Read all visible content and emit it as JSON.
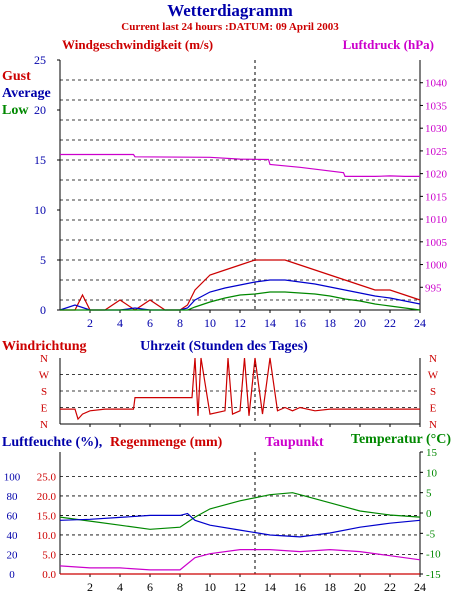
{
  "header": {
    "title": "Wetterdiagramm",
    "subtitle": "Current last 24 hours :DATUM: 09 April 2003"
  },
  "wind_panel": {
    "left_title": "Windgeschwindigkeit (m/s)",
    "right_title": "Luftdruck (hPa)",
    "legend_gust": "Gust",
    "legend_average": "Average",
    "legend_low": "Low",
    "x_title": "Uhrzeit (Stunden des Tages)",
    "colors": {
      "gust": "#cc0000",
      "average": "#0000cc",
      "low": "#008800",
      "pressure": "#cc00cc",
      "left_axis": "#0000aa"
    }
  },
  "direction_panel": {
    "title": "Windrichtung",
    "color": "#cc0000"
  },
  "humidity_panel": {
    "left_title_a": "Luftfeuchte (%),",
    "left_title_b": "Regenmenge (mm)",
    "mid_title": "Taupunkt",
    "right_title": "Temperatur (°C)",
    "colors": {
      "humidity": "#0000cc",
      "rain": "#cc0000",
      "dewpoint": "#cc00cc",
      "temperature": "#008800"
    }
  },
  "chart_data": [
    {
      "type": "line",
      "title": "Windgeschwindigkeit (m/s)",
      "xlabel": "Uhrzeit (Stunden des Tages)",
      "ylabel": "Windgeschwindigkeit (m/s)",
      "xlim": [
        0,
        24
      ],
      "ylim": [
        0,
        25
      ],
      "y2label": "Luftdruck (hPa)",
      "y2lim": [
        990,
        1045
      ],
      "x_ticks": [
        2,
        4,
        6,
        8,
        10,
        12,
        14,
        16,
        18,
        20,
        22,
        24
      ],
      "y_ticks": [
        0,
        5,
        10,
        15,
        20,
        25
      ],
      "y2_ticks": [
        995,
        1000,
        1005,
        1010,
        1015,
        1020,
        1025,
        1030,
        1035,
        1040
      ],
      "series": [
        {
          "name": "Gust",
          "x": [
            0,
            1,
            1.5,
            2,
            3,
            4,
            5,
            6,
            7,
            8,
            8.5,
            9,
            10,
            11,
            12,
            13,
            14,
            15,
            16,
            17,
            18,
            19,
            20,
            21,
            22,
            23,
            24
          ],
          "values": [
            0,
            0,
            1.5,
            0,
            0,
            1,
            0,
            1,
            0,
            0,
            0.5,
            2,
            3.5,
            4,
            4.5,
            5,
            5,
            5,
            4.5,
            4,
            3.5,
            3,
            2.5,
            2,
            2,
            1.5,
            1
          ]
        },
        {
          "name": "Average",
          "x": [
            0,
            1,
            2,
            3,
            4,
            5,
            6,
            7,
            8,
            8.5,
            9,
            10,
            11,
            12,
            13,
            14,
            15,
            16,
            17,
            18,
            19,
            20,
            21,
            22,
            23,
            24
          ],
          "values": [
            0,
            0.5,
            0,
            0,
            0,
            0.2,
            0,
            0,
            0,
            0.2,
            1,
            1.8,
            2.2,
            2.5,
            2.8,
            3,
            3,
            2.8,
            2.6,
            2.3,
            2,
            1.7,
            1.4,
            1.2,
            0.9,
            0.6
          ]
        },
        {
          "name": "Low",
          "x": [
            0,
            8.5,
            9,
            10,
            11,
            12,
            13,
            14,
            15,
            16,
            17,
            18,
            19,
            20,
            21,
            22,
            23,
            24
          ],
          "values": [
            0,
            0,
            0.3,
            0.8,
            1.2,
            1.5,
            1.6,
            1.8,
            1.8,
            1.7,
            1.6,
            1.4,
            1.1,
            0.9,
            0.6,
            0.4,
            0.2,
            0
          ]
        },
        {
          "name": "Luftdruck",
          "axis": "right",
          "x": [
            0,
            1,
            4.9,
            5,
            10,
            12,
            13.9,
            14,
            16,
            18.9,
            19,
            21,
            22,
            23,
            24
          ],
          "values": [
            1024.2,
            1024.2,
            1024.2,
            1023.7,
            1023.6,
            1023.2,
            1023.1,
            1022,
            1021.4,
            1020.2,
            1019.4,
            1019.4,
            1019.5,
            1019.4,
            1019.4
          ]
        }
      ]
    },
    {
      "type": "line",
      "title": "Windrichtung",
      "xlim": [
        0,
        24
      ],
      "y_categories": [
        "N",
        "E",
        "S",
        "W",
        "N"
      ],
      "series": [
        {
          "name": "Windrichtung",
          "x": [
            0,
            1,
            1.2,
            1.5,
            2,
            3,
            4,
            4.9,
            5,
            7,
            8,
            8.8,
            9,
            9.2,
            9.4,
            10,
            11,
            11.2,
            11.5,
            12,
            12.3,
            12.6,
            13,
            13.5,
            14,
            14.5,
            15,
            15.5,
            16,
            17,
            18,
            19,
            20,
            21,
            22,
            23,
            24
          ],
          "values": [
            0.9,
            0.9,
            0.3,
            0.6,
            0.8,
            0.9,
            0.9,
            0.9,
            1.6,
            1.6,
            1.6,
            1.6,
            4,
            0.5,
            4,
            0.6,
            0.8,
            4,
            0.6,
            0.8,
            4,
            0.5,
            4,
            0.6,
            4,
            0.8,
            1,
            0.8,
            1,
            0.8,
            0.9,
            0.9,
            0.9,
            0.9,
            0.9,
            0.9,
            0.9
          ]
        }
      ]
    },
    {
      "type": "line",
      "title": "Luftfeuchte (%), Regenmenge (mm), Taupunkt, Temperatur (°C)",
      "xlim": [
        0,
        24
      ],
      "y_humidity_ticks": [
        0,
        20,
        40,
        60,
        80,
        100
      ],
      "y_rain_ticks": [
        0.0,
        5.0,
        10.0,
        15.0,
        20.0,
        25.0
      ],
      "y2_ticks": [
        15,
        10,
        5,
        0,
        -5,
        -10,
        -15
      ],
      "ylim_humidity": [
        0,
        125
      ],
      "y2lim": [
        -15,
        15
      ],
      "series": [
        {
          "name": "Temperatur",
          "axis": "right",
          "x": [
            0,
            2,
            4,
            6,
            8,
            9,
            10,
            12,
            14,
            15.5,
            16,
            18,
            20,
            22,
            24
          ],
          "values": [
            -1,
            -2,
            -3,
            -4,
            -3.5,
            -1,
            1,
            3,
            4.5,
            5,
            4.5,
            2.5,
            0.5,
            -0.5,
            -1
          ]
        },
        {
          "name": "Luftfeuchte",
          "axis": "left",
          "x": [
            0,
            2,
            4,
            6,
            8,
            8.5,
            9,
            10,
            12,
            14,
            16,
            18,
            20,
            22,
            24
          ],
          "values": [
            55,
            56,
            58,
            60,
            60,
            62,
            55,
            50,
            45,
            40,
            38,
            42,
            48,
            52,
            55
          ]
        },
        {
          "name": "Taupunkt",
          "axis": "right",
          "x": [
            0,
            2,
            4,
            6,
            8,
            9,
            10,
            12,
            14,
            16,
            18,
            20,
            22,
            24
          ],
          "values": [
            -13,
            -13.5,
            -13.5,
            -14,
            -14,
            -11,
            -10,
            -9,
            -9,
            -9.5,
            -9,
            -9.5,
            -10.5,
            -11.5
          ]
        },
        {
          "name": "Regenmenge",
          "axis": "left",
          "x": [
            0,
            24
          ],
          "values": [
            0.0,
            0.0
          ]
        }
      ]
    }
  ]
}
